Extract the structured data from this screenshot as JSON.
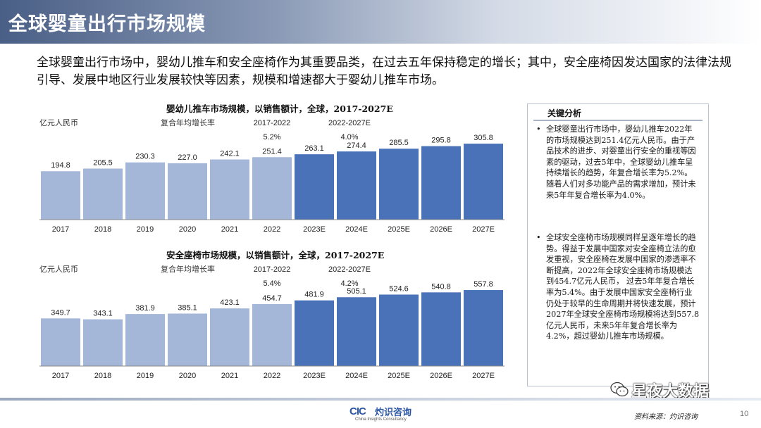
{
  "header": {
    "title": "全球婴童出行市场规模"
  },
  "intro": "全球婴童出行市场中，婴幼儿推车和安全座椅作为其重要品类，在过去五年保持稳定的增长；其中，安全座椅因发达国家的法律法规引导、发展中地区行业发展较快等因素，规模和增速都大于婴幼儿推车市场。",
  "chart_data": [
    {
      "type": "bar",
      "title": "婴幼儿推车市场规模，以销售额计，全球，2017-2027E",
      "ylabel": "亿元人民币",
      "cagr_label": "复合年均增长率",
      "cagr": [
        {
          "period": "2017-2022",
          "value": "5.2%"
        },
        {
          "period": "2022-2027E",
          "value": "4.0%"
        }
      ],
      "categories": [
        "2017",
        "2018",
        "2019",
        "2020",
        "2021",
        "2022",
        "2023E",
        "2024E",
        "2025E",
        "2026E",
        "2027E"
      ],
      "values": [
        194.8,
        205.5,
        230.3,
        227.0,
        242.1,
        251.4,
        263.1,
        274.4,
        285.5,
        295.8,
        305.8
      ],
      "value_labels": [
        "194.8",
        "205.5",
        "230.3",
        "227.0",
        "242.1",
        "251.4",
        "263.1",
        "274.4",
        "285.5",
        "295.8",
        "305.8"
      ],
      "ylim": [
        0,
        340
      ],
      "colors": {
        "actual": "#a4b7d9",
        "forecast": "#4a72b8"
      }
    },
    {
      "type": "bar",
      "title": "安全座椅市场规模，以销售额计，全球，2017-2027E",
      "ylabel": "亿元人民币",
      "cagr_label": "复合年均增长率",
      "cagr": [
        {
          "period": "2017-2022",
          "value": "5.4%"
        },
        {
          "period": "2022-2027E",
          "value": "4.2%"
        }
      ],
      "categories": [
        "2017",
        "2018",
        "2019",
        "2020",
        "2021",
        "2022",
        "2023E",
        "2024E",
        "2025E",
        "2026E",
        "2027E"
      ],
      "values": [
        349.7,
        343.1,
        381.9,
        385.1,
        423.1,
        454.7,
        481.9,
        505.1,
        524.6,
        540.8,
        557.8
      ],
      "value_labels": [
        "349.7",
        "343.1",
        "381.9",
        "385.1",
        "423.1",
        "454.7",
        "481.9",
        "505.1",
        "524.6",
        "540.8",
        "557.8"
      ],
      "ylim": [
        0,
        620
      ],
      "colors": {
        "actual": "#a4b7d9",
        "forecast": "#4a72b8"
      }
    }
  ],
  "sidebar": {
    "heading": "关键分析",
    "bullets": [
      "全球婴童出行市场中，婴幼儿推车2022年的市场规模达到251.4亿元人民币。由于产品技术的进步、对婴童出行安全的重视等因素的驱动，过去5年中，全球婴幼儿推车呈持续增长的趋势，年复合增长率为5.2%。随着人们对多功能产品的需求增加，预计未来5年年复合增长率为4.0%。",
      "全球安全座椅市场规模同样呈逐年增长的趋势。得益于发展中国家对安全座椅立法的愈发重视，安全座椅在发展中国家的渗透率不断提高，2022年全球安全座椅市场规模达到454.7亿元人民币， 过去5年年复合增长率为5.4%。由于发展中国家安全座椅行业仍处于较早的生命周期并将快速发展，预计 2027年全球安全座椅市场规模将达到557.8亿元人民币，未来5年年复合增长率为4.2%，超过婴幼儿推车市场规模。"
    ],
    "bullet_symbol": "•"
  },
  "footer": {
    "logo_mark": "CIC",
    "logo_cn": "灼识咨询",
    "logo_en": "China Insights Consultancy",
    "source": "资料来源：灼识咨询",
    "page": "10"
  },
  "watermark": {
    "text": "星夜大数据",
    "icon": "wechat-icon"
  }
}
